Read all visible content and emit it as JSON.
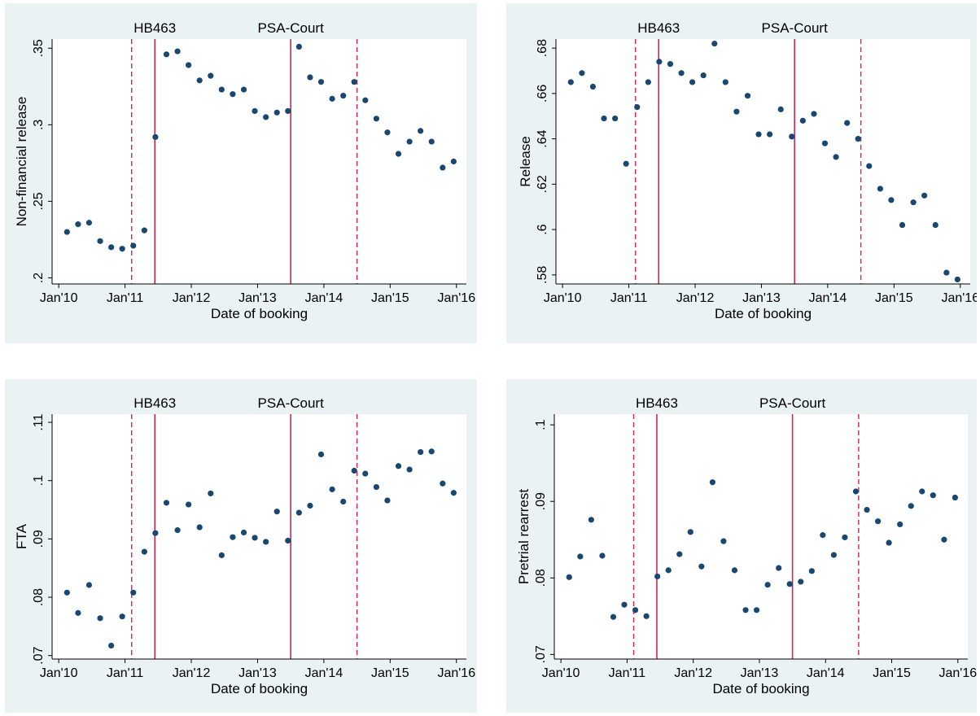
{
  "colors": {
    "panel_bg": "#eaf2f3",
    "plot_bg": "#ffffff",
    "marker": "#1a476f",
    "event_line": "#d1264f",
    "axis": "#000000"
  },
  "events": {
    "labels": [
      {
        "name": "HB463",
        "x": 2011.45
      },
      {
        "name": "PSA-Court",
        "x": 2013.5
      }
    ],
    "solid_lines": [
      2011.45,
      2013.5
    ],
    "dashed_lines": [
      2011.1,
      2014.5
    ]
  },
  "chart_data": [
    {
      "type": "scatter",
      "ylabel": "Non-financial release",
      "xlabel": "Date of booking",
      "xlim": [
        2009.9,
        2016.15
      ],
      "xticks": [
        2010,
        2011,
        2012,
        2013,
        2014,
        2015,
        2016
      ],
      "xtick_labels": [
        "Jan'10",
        "Jan'11",
        "Jan'12",
        "Jan'13",
        "Jan'14",
        "Jan'15",
        "Jan'16"
      ],
      "ylim": [
        0.196,
        0.356
      ],
      "yticks": [
        0.2,
        0.25,
        0.3,
        0.35
      ],
      "ytick_labels": [
        ".2",
        ".25",
        ".3",
        ".35"
      ],
      "x": [
        2010.125,
        2010.292,
        2010.458,
        2010.625,
        2010.792,
        2010.958,
        2011.125,
        2011.292,
        2011.458,
        2011.625,
        2011.792,
        2011.958,
        2012.125,
        2012.292,
        2012.458,
        2012.625,
        2012.792,
        2012.958,
        2013.125,
        2013.292,
        2013.458,
        2013.625,
        2013.792,
        2013.958,
        2014.125,
        2014.292,
        2014.458,
        2014.625,
        2014.792,
        2014.958,
        2015.125,
        2015.292,
        2015.458,
        2015.625,
        2015.792,
        2015.958
      ],
      "y": [
        0.23,
        0.235,
        0.236,
        0.224,
        0.22,
        0.219,
        0.221,
        0.231,
        0.292,
        0.346,
        0.348,
        0.339,
        0.329,
        0.332,
        0.323,
        0.32,
        0.323,
        0.309,
        0.305,
        0.308,
        0.309,
        0.351,
        0.331,
        0.328,
        0.317,
        0.319,
        0.328,
        0.316,
        0.304,
        0.295,
        0.281,
        0.289,
        0.296,
        0.289,
        0.272,
        0.276
      ]
    },
    {
      "type": "scatter",
      "ylabel": "Release",
      "xlabel": "Date of booking",
      "xlim": [
        2009.9,
        2016.15
      ],
      "xticks": [
        2010,
        2011,
        2012,
        2013,
        2014,
        2015,
        2016
      ],
      "xtick_labels": [
        "Jan'10",
        "Jan'11",
        "Jan'12",
        "Jan'13",
        "Jan'14",
        "Jan'15",
        "Jan'16"
      ],
      "ylim": [
        0.576,
        0.684
      ],
      "yticks": [
        0.58,
        0.6,
        0.62,
        0.64,
        0.66,
        0.68
      ],
      "ytick_labels": [
        ".58",
        ".6",
        ".62",
        ".64",
        ".66",
        ".68"
      ],
      "x": [
        2010.125,
        2010.292,
        2010.458,
        2010.625,
        2010.792,
        2010.958,
        2011.125,
        2011.292,
        2011.458,
        2011.625,
        2011.792,
        2011.958,
        2012.125,
        2012.292,
        2012.458,
        2012.625,
        2012.792,
        2012.958,
        2013.125,
        2013.292,
        2013.458,
        2013.625,
        2013.792,
        2013.958,
        2014.125,
        2014.292,
        2014.458,
        2014.625,
        2014.792,
        2014.958,
        2015.125,
        2015.292,
        2015.458,
        2015.625,
        2015.792,
        2015.958
      ],
      "y": [
        0.665,
        0.669,
        0.663,
        0.649,
        0.649,
        0.629,
        0.654,
        0.665,
        0.674,
        0.673,
        0.669,
        0.665,
        0.668,
        0.682,
        0.665,
        0.652,
        0.659,
        0.642,
        0.642,
        0.653,
        0.641,
        0.648,
        0.651,
        0.638,
        0.632,
        0.647,
        0.64,
        0.628,
        0.618,
        0.613,
        0.602,
        0.612,
        0.615,
        0.602,
        0.581,
        0.578
      ]
    },
    {
      "type": "scatter",
      "ylabel": "FTA",
      "xlabel": "Date of booking",
      "xlim": [
        2009.9,
        2016.15
      ],
      "xticks": [
        2010,
        2011,
        2012,
        2013,
        2014,
        2015,
        2016
      ],
      "xtick_labels": [
        "Jan'10",
        "Jan'11",
        "Jan'12",
        "Jan'13",
        "Jan'14",
        "Jan'15",
        "Jan'16"
      ],
      "ylim": [
        0.0694,
        0.1114
      ],
      "yticks": [
        0.07,
        0.08,
        0.09,
        0.1,
        0.11
      ],
      "ytick_labels": [
        ".07",
        ".08",
        ".09",
        ".1",
        ".11"
      ],
      "x": [
        2010.125,
        2010.292,
        2010.458,
        2010.625,
        2010.792,
        2010.958,
        2011.125,
        2011.292,
        2011.458,
        2011.625,
        2011.792,
        2011.958,
        2012.125,
        2012.292,
        2012.458,
        2012.625,
        2012.792,
        2012.958,
        2013.125,
        2013.292,
        2013.458,
        2013.625,
        2013.792,
        2013.958,
        2014.125,
        2014.292,
        2014.458,
        2014.625,
        2014.792,
        2014.958,
        2015.125,
        2015.292,
        2015.458,
        2015.625,
        2015.792,
        2015.958
      ],
      "y": [
        0.0808,
        0.0773,
        0.0821,
        0.0764,
        0.0717,
        0.0767,
        0.0808,
        0.0878,
        0.091,
        0.0962,
        0.0915,
        0.0959,
        0.092,
        0.0978,
        0.0872,
        0.0903,
        0.0911,
        0.0902,
        0.0895,
        0.0947,
        0.0897,
        0.0945,
        0.0957,
        0.1045,
        0.0985,
        0.0964,
        0.1017,
        0.1012,
        0.0989,
        0.0966,
        0.1025,
        0.1019,
        0.1049,
        0.105,
        0.0995,
        0.0979
      ]
    },
    {
      "type": "scatter",
      "ylabel": "Pretrial rearrest",
      "xlabel": "Date of booking",
      "xlim": [
        2009.9,
        2016.15
      ],
      "xticks": [
        2010,
        2011,
        2012,
        2013,
        2014,
        2015,
        2016
      ],
      "xtick_labels": [
        "Jan'10",
        "Jan'11",
        "Jan'12",
        "Jan'13",
        "Jan'14",
        "Jan'15",
        "Jan'16"
      ],
      "ylim": [
        0.0694,
        0.1014
      ],
      "yticks": [
        0.07,
        0.08,
        0.09,
        0.1
      ],
      "ytick_labels": [
        ".07",
        ".08",
        ".09",
        ".1"
      ],
      "x": [
        2010.125,
        2010.292,
        2010.458,
        2010.625,
        2010.792,
        2010.958,
        2011.125,
        2011.292,
        2011.458,
        2011.625,
        2011.792,
        2011.958,
        2012.125,
        2012.292,
        2012.458,
        2012.625,
        2012.792,
        2012.958,
        2013.125,
        2013.292,
        2013.458,
        2013.625,
        2013.792,
        2013.958,
        2014.125,
        2014.292,
        2014.458,
        2014.625,
        2014.792,
        2014.958,
        2015.125,
        2015.292,
        2015.458,
        2015.625,
        2015.792,
        2015.958
      ],
      "y": [
        0.0801,
        0.0828,
        0.0876,
        0.0829,
        0.0749,
        0.0765,
        0.0758,
        0.075,
        0.0802,
        0.081,
        0.0831,
        0.086,
        0.0815,
        0.0925,
        0.0848,
        0.081,
        0.0758,
        0.0758,
        0.0791,
        0.0813,
        0.0792,
        0.0795,
        0.0809,
        0.0856,
        0.083,
        0.0853,
        0.0913,
        0.0889,
        0.0874,
        0.0846,
        0.087,
        0.0894,
        0.0913,
        0.0908,
        0.085,
        0.0905
      ]
    }
  ]
}
